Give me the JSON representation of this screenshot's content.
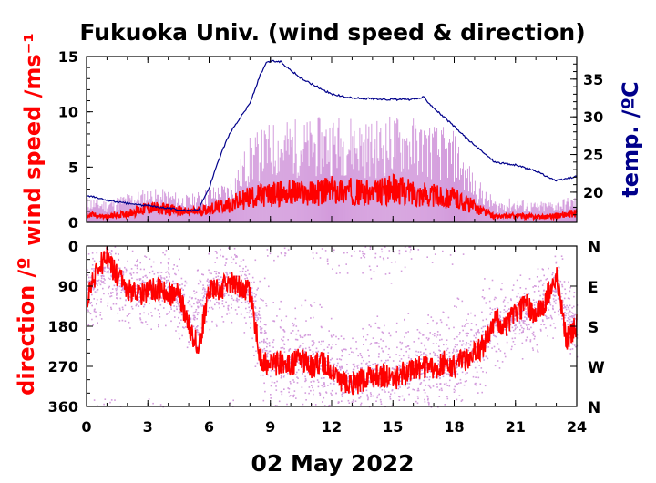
{
  "title": "Fukuoka Univ. (wind speed & direction)",
  "date_label": "02 May 2022",
  "colors": {
    "wind_mean": "#ff0000",
    "wind_gust": "#d39bdc",
    "temperature": "#00008b",
    "direction_mean": "#ff0000",
    "direction_samples": "#d39bdc"
  },
  "chart_data": [
    {
      "type": "line",
      "panel": "top",
      "xlabel": "",
      "ylabel": "wind speed /ms⁻¹",
      "ylabel_right": "temp. /ºC",
      "xlim": [
        0,
        24
      ],
      "ylim": [
        0,
        15
      ],
      "ylim_right": [
        16,
        38
      ],
      "xticks": [
        0,
        3,
        6,
        9,
        12,
        15,
        18,
        21,
        24
      ],
      "yticks": [
        0,
        5,
        10,
        15
      ],
      "yticks_right": [
        20,
        25,
        30,
        35
      ],
      "series": [
        {
          "role": "wind_speed_mean",
          "x": [
            0,
            1,
            2,
            3,
            4,
            5,
            6,
            7,
            8,
            9,
            10,
            11,
            12,
            13,
            14,
            15,
            16,
            17,
            18,
            19,
            20,
            21,
            22,
            23,
            24
          ],
          "y": [
            0.7,
            0.5,
            0.8,
            1.3,
            1.2,
            0.9,
            1.2,
            1.6,
            2.3,
            2.5,
            2.7,
            2.6,
            2.9,
            2.8,
            2.6,
            3.0,
            2.7,
            2.4,
            2.2,
            1.4,
            0.5,
            0.6,
            0.5,
            0.6,
            0.8
          ]
        },
        {
          "role": "wind_speed_gust",
          "x": [
            0,
            1,
            2,
            3,
            4,
            5,
            6,
            7,
            8,
            9,
            10,
            11,
            12,
            13,
            14,
            15,
            16,
            17,
            18,
            19,
            20,
            21,
            22,
            23,
            24
          ],
          "y": [
            1.8,
            1.6,
            2.1,
            2.4,
            2.3,
            1.9,
            2.5,
            2.9,
            6.0,
            7.0,
            7.3,
            7.2,
            7.6,
            7.5,
            7.1,
            7.6,
            7.4,
            6.9,
            6.4,
            3.3,
            1.6,
            1.7,
            1.4,
            1.6,
            1.9
          ]
        },
        {
          "role": "temperature",
          "axis": "right",
          "x": [
            0,
            1,
            2,
            3,
            4,
            5,
            5.5,
            6,
            6.5,
            7,
            7.5,
            8,
            8.5,
            8.8,
            9,
            9.5,
            10,
            10.5,
            11,
            12,
            13,
            14,
            15,
            16,
            16.5,
            17,
            18,
            19,
            20,
            21,
            22,
            23,
            24
          ],
          "y": [
            19.6,
            18.9,
            18.5,
            18.2,
            17.9,
            17.5,
            17.8,
            20.5,
            24.5,
            27.8,
            29.8,
            31.8,
            35.5,
            37.1,
            37.4,
            37.3,
            36.2,
            35.1,
            34.4,
            33.0,
            32.5,
            32.4,
            32.3,
            32.3,
            32.6,
            31.2,
            28.7,
            26.2,
            24.0,
            23.6,
            22.8,
            21.5,
            22.1
          ]
        }
      ]
    },
    {
      "type": "scatter",
      "panel": "bottom",
      "xlabel": "",
      "ylabel": "direction /º",
      "xlim": [
        0,
        24
      ],
      "ylim": [
        360,
        0
      ],
      "xticks": [
        0,
        3,
        6,
        9,
        12,
        15,
        18,
        21,
        24
      ],
      "yticks": [
        0,
        90,
        180,
        270,
        360
      ],
      "yticks_right": [
        "N",
        "E",
        "S",
        "W",
        "N"
      ],
      "series": [
        {
          "role": "direction_mean",
          "x": [
            0,
            0.5,
            1,
            1.5,
            2,
            2.5,
            3,
            3.5,
            4,
            4.5,
            5,
            5.5,
            6,
            6.5,
            7,
            7.5,
            8,
            8.5,
            9,
            9.5,
            10,
            10.5,
            11,
            11.5,
            12,
            12.5,
            13,
            13.5,
            14,
            14.5,
            15,
            15.5,
            16,
            16.5,
            17,
            17.5,
            18,
            18.5,
            19,
            19.5,
            20,
            20.5,
            21,
            21.5,
            22,
            22.5,
            23,
            23.5,
            24
          ],
          "y": [
            120,
            60,
            20,
            70,
            95,
            110,
            100,
            95,
            110,
            100,
            180,
            230,
            90,
            100,
            80,
            95,
            100,
            250,
            270,
            260,
            265,
            255,
            270,
            260,
            280,
            300,
            310,
            300,
            295,
            290,
            300,
            285,
            280,
            270,
            275,
            260,
            270,
            255,
            240,
            220,
            160,
            180,
            150,
            130,
            160,
            120,
            60,
            210,
            180
          ]
        },
        {
          "role": "direction_samples",
          "x": [
            0,
            1,
            2,
            3,
            4,
            5,
            6,
            7,
            8,
            9,
            10,
            11,
            12,
            13,
            14,
            15,
            16,
            17,
            18,
            19,
            20,
            21,
            22,
            23,
            24
          ],
          "y": [
            100,
            50,
            110,
            90,
            95,
            170,
            90,
            85,
            100,
            265,
            260,
            250,
            285,
            305,
            295,
            300,
            280,
            270,
            265,
            230,
            170,
            160,
            140,
            100,
            190
          ]
        }
      ]
    }
  ]
}
